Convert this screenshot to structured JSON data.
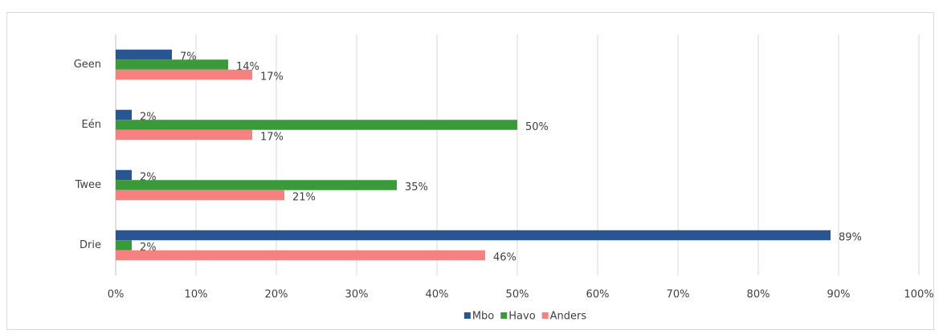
{
  "chart_data": {
    "type": "hbar",
    "categories": [
      "Geen",
      "Eén",
      "Twee",
      "Drie"
    ],
    "series": [
      {
        "name": "Mbo",
        "color": "#2a5593",
        "values": [
          7,
          2,
          2,
          89
        ],
        "value_labels": [
          "7%",
          "2%",
          "2%",
          "89%"
        ]
      },
      {
        "name": "Havo",
        "color": "#3a9a3a",
        "values": [
          14,
          50,
          35,
          2
        ],
        "value_labels": [
          "14%",
          "50%",
          "35%",
          "2%"
        ]
      },
      {
        "name": "Anders",
        "color": "#f78080",
        "values": [
          17,
          17,
          21,
          46
        ],
        "value_labels": [
          "17%",
          "17%",
          "21%",
          "46%"
        ]
      }
    ],
    "xlim": [
      0,
      100
    ],
    "xticks": [
      {
        "value": 0,
        "label": "0%"
      },
      {
        "value": 10,
        "label": "10%"
      },
      {
        "value": 20,
        "label": "20%"
      },
      {
        "value": 30,
        "label": "30%"
      },
      {
        "value": 40,
        "label": "40%"
      },
      {
        "value": 50,
        "label": "50%"
      },
      {
        "value": 60,
        "label": "60%"
      },
      {
        "value": 70,
        "label": "70%"
      },
      {
        "value": 80,
        "label": "80%"
      },
      {
        "value": 90,
        "label": "90%"
      },
      {
        "value": 100,
        "label": "100%"
      }
    ],
    "grid": true,
    "legend": "bottom"
  }
}
